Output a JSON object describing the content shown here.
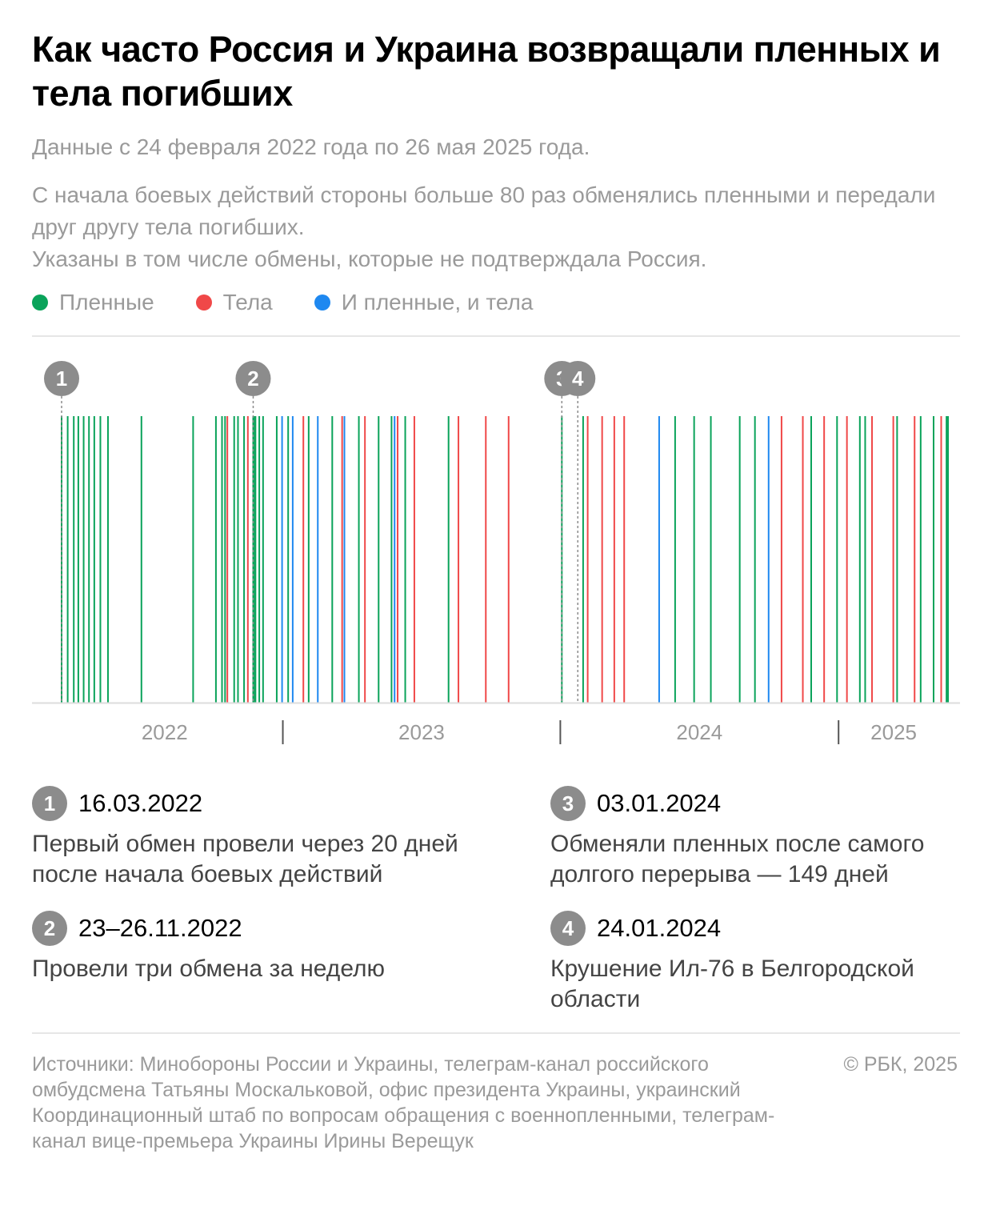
{
  "title": "Как часто Россия и Украина возвращали пленных и тела погибших",
  "subtitle": "Данные с 24 февраля 2022 года по 26 мая 2025 года.",
  "description": [
    "С начала боевых действий стороны больше 80 раз обменялись пленными и передали друг другу тела погибших.",
    "Указаны в том числе обмены, которые не подтверждала Россия."
  ],
  "legend": [
    {
      "label": "Пленные",
      "color": "#0aa35a"
    },
    {
      "label": "Тела",
      "color": "#f04848"
    },
    {
      "label": "И пленные, и тела",
      "color": "#1e88f0"
    }
  ],
  "chart_data": {
    "type": "timeline",
    "x_range": [
      "2022-02-24",
      "2025-05-26"
    ],
    "year_labels": [
      "2022",
      "2023",
      "2024",
      "2025"
    ],
    "grid": false,
    "series": [
      {
        "name": "Пленные",
        "color": "#0aa35a",
        "dates": [
          "2022-03-16",
          "2022-03-24",
          "2022-04-01",
          "2022-04-07",
          "2022-04-14",
          "2022-04-21",
          "2022-04-28",
          "2022-05-06",
          "2022-05-16",
          "2022-06-29",
          "2022-09-05",
          "2022-10-05",
          "2022-10-13",
          "2022-10-17",
          "2022-10-29",
          "2022-11-03",
          "2022-11-11",
          "2022-11-23",
          "2022-11-24",
          "2022-11-26",
          "2022-12-01",
          "2022-12-06",
          "2022-12-24",
          "2023-01-08",
          "2023-02-04",
          "2023-03-07",
          "2023-04-11",
          "2023-05-07",
          "2023-05-24",
          "2023-06-11",
          "2023-08-07",
          "2024-01-03",
          "2024-01-31",
          "2024-05-31",
          "2024-06-25",
          "2024-07-17",
          "2024-08-24",
          "2024-09-13",
          "2024-11-26",
          "2024-12-30",
          "2025-01-29",
          "2025-02-05",
          "2025-03-19",
          "2025-04-19",
          "2025-05-06",
          "2025-05-23",
          "2025-05-25"
        ]
      },
      {
        "name": "Тела",
        "color": "#f04848",
        "dates": [
          "2022-10-20",
          "2022-11-16",
          "2023-01-28",
          "2023-03-20",
          "2023-04-19",
          "2023-06-01",
          "2023-06-23",
          "2023-08-20",
          "2023-09-25",
          "2023-10-25",
          "2024-02-06",
          "2024-02-25",
          "2024-03-12",
          "2024-03-25",
          "2024-10-18",
          "2024-11-15",
          "2024-12-13",
          "2025-01-12",
          "2025-02-14",
          "2025-03-14",
          "2025-04-11",
          "2025-05-16"
        ]
      },
      {
        "name": "И пленные, и тела",
        "color": "#1e88f0",
        "dates": [
          "2022-12-31",
          "2023-01-14",
          "2023-02-16",
          "2023-03-23",
          "2023-05-28",
          "2024-05-10",
          "2024-10-01"
        ]
      }
    ],
    "annotations": [
      {
        "number": "1",
        "date": "2022-03-16"
      },
      {
        "number": "2",
        "date": "2022-11-23"
      },
      {
        "number": "3",
        "date": "2024-01-03"
      },
      {
        "number": "4",
        "date": "2024-01-24"
      }
    ]
  },
  "notes": [
    {
      "number": "1",
      "date": "16.03.2022",
      "text": "Первый обмен провели через 20 дней после начала боевых действий"
    },
    {
      "number": "2",
      "date": "23–26.11.2022",
      "text": "Провели три обмена за неделю"
    },
    {
      "number": "3",
      "date": "03.01.2024",
      "text": "Обменяли пленных после самого долгого перерыва — 149 дней"
    },
    {
      "number": "4",
      "date": "24.01.2024",
      "text": "Крушение Ил-76 в Белгородской области"
    }
  ],
  "sources": "Источники: Минобороны России и Украины, телеграм-канал российского омбудсмена Татьяны Москальковой, офис президента Украины, украинский Координационный штаб по вопросам обращения с военнопленными, телеграм-канал вице-премьера Украины Ирины Верещук",
  "copyright": "© РБК, 2025",
  "colors": {
    "axis": "#dcdcdc",
    "badge": "#8c8c8c",
    "muted_text": "#9a9a9a"
  }
}
